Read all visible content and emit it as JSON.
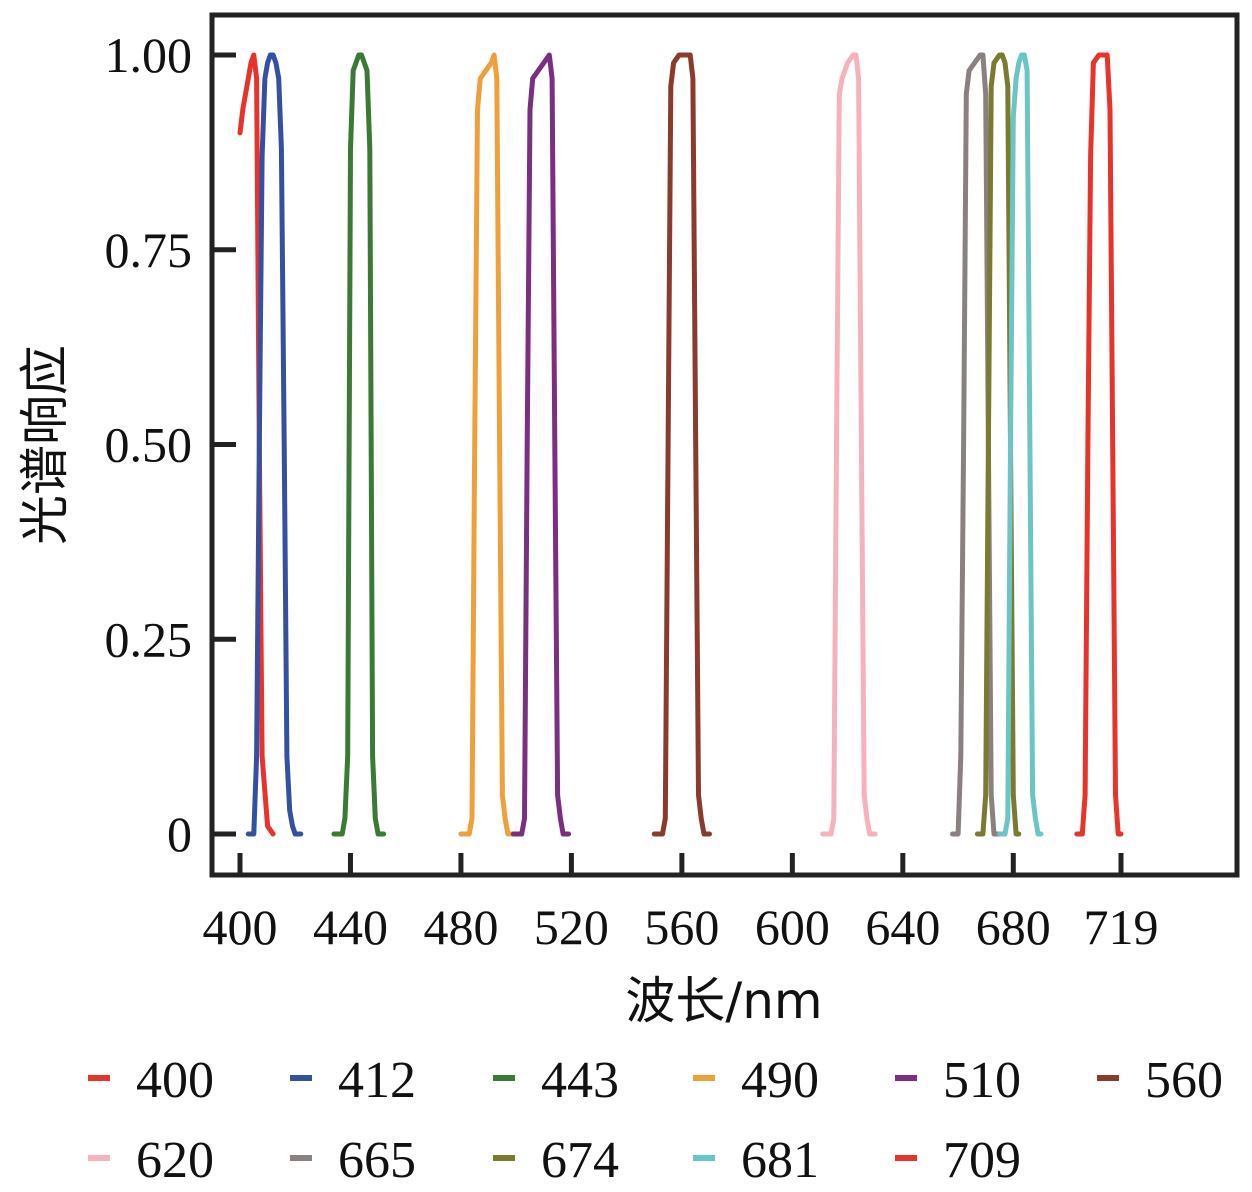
{
  "chart_data": {
    "type": "line",
    "title": "",
    "xlabel": "波长/nm",
    "ylabel": "光谱响应",
    "xlim": [
      395,
      755
    ],
    "ylim": [
      -0.05,
      1.05
    ],
    "x_ticks": [
      400,
      440,
      480,
      520,
      560,
      600,
      640,
      680,
      719
    ],
    "x_tick_labels": [
      "400",
      "440",
      "480",
      "520",
      "560",
      "600",
      "640",
      "680",
      "719"
    ],
    "y_ticks": [
      0,
      0.25,
      0.5,
      0.75,
      1.0
    ],
    "y_tick_labels": [
      "0",
      "0.25",
      "0.50",
      "0.75",
      "1.00"
    ],
    "legend_position": "bottom",
    "series": [
      {
        "name": "400",
        "color": "#e8332a",
        "x": [
          400,
          401,
          403,
          404,
          405,
          406,
          407,
          408,
          410,
          412
        ],
        "y": [
          0.9,
          0.93,
          0.97,
          0.99,
          1.0,
          0.97,
          0.5,
          0.1,
          0.01,
          0
        ]
      },
      {
        "name": "412",
        "color": "#3550a0",
        "x": [
          403,
          405,
          406,
          407,
          408,
          409,
          410,
          411,
          412,
          413,
          414,
          415,
          416,
          417,
          418,
          419,
          420,
          422
        ],
        "y": [
          0,
          0,
          0.1,
          0.5,
          0.87,
          0.97,
          0.99,
          1.0,
          1.0,
          0.99,
          0.97,
          0.88,
          0.5,
          0.1,
          0.03,
          0.01,
          0,
          0
        ]
      },
      {
        "name": "443",
        "color": "#3a7a35",
        "x": [
          434,
          437,
          438,
          439,
          440,
          441,
          442,
          443,
          444,
          445,
          446,
          447,
          448,
          449,
          450,
          452
        ],
        "y": [
          0,
          0,
          0.02,
          0.1,
          0.88,
          0.98,
          0.99,
          1.0,
          1.0,
          0.99,
          0.98,
          0.88,
          0.1,
          0.02,
          0,
          0
        ]
      },
      {
        "name": "490",
        "color": "#f0a03a",
        "x": [
          480,
          483,
          484,
          485,
          486,
          487,
          489,
          491,
          492,
          493,
          494,
          495,
          496,
          497,
          499
        ],
        "y": [
          0,
          0,
          0.02,
          0.5,
          0.93,
          0.97,
          0.98,
          0.99,
          1.0,
          0.97,
          0.5,
          0.05,
          0.02,
          0,
          0
        ]
      },
      {
        "name": "510",
        "color": "#7a2f80",
        "x": [
          499,
          502,
          503,
          504,
          505,
          506,
          508,
          510,
          512,
          513,
          514,
          515,
          516,
          517,
          519
        ],
        "y": [
          0,
          0,
          0.02,
          0.5,
          0.93,
          0.97,
          0.98,
          0.99,
          1.0,
          0.97,
          0.5,
          0.05,
          0.02,
          0,
          0
        ]
      },
      {
        "name": "560",
        "color": "#8b3a2e",
        "x": [
          550,
          553,
          554,
          555,
          556,
          557,
          559,
          561,
          563,
          564,
          565,
          566,
          567,
          568,
          570
        ],
        "y": [
          0,
          0,
          0.02,
          0.5,
          0.96,
          0.99,
          1.0,
          1.0,
          1.0,
          0.97,
          0.5,
          0.05,
          0.02,
          0,
          0
        ]
      },
      {
        "name": "620",
        "color": "#f5b2bc",
        "x": [
          611,
          614,
          615,
          616,
          617,
          618,
          620,
          622,
          623,
          624,
          625,
          626,
          627,
          628,
          630
        ],
        "y": [
          0,
          0,
          0.02,
          0.5,
          0.95,
          0.97,
          0.99,
          1.0,
          1.0,
          0.97,
          0.5,
          0.05,
          0.02,
          0,
          0
        ]
      },
      {
        "name": "665",
        "color": "#8a8080",
        "x": [
          658,
          660,
          661,
          662,
          663,
          664,
          666,
          668,
          669,
          670,
          671,
          672,
          673,
          675
        ],
        "y": [
          0,
          0,
          0.1,
          0.5,
          0.95,
          0.98,
          0.99,
          1.0,
          1.0,
          0.95,
          0.5,
          0.05,
          0,
          0
        ]
      },
      {
        "name": "674",
        "color": "#7a7a30",
        "x": [
          667,
          669,
          670,
          671,
          672,
          673,
          675,
          676,
          677,
          678,
          679,
          680,
          681,
          682
        ],
        "y": [
          0,
          0,
          0.05,
          0.5,
          0.96,
          0.99,
          1.0,
          1.0,
          0.99,
          0.96,
          0.5,
          0.05,
          0,
          0
        ]
      },
      {
        "name": "681",
        "color": "#6cc5c5",
        "x": [
          675,
          677,
          678,
          679,
          680,
          681,
          682,
          683,
          684,
          685,
          686,
          687,
          688,
          689,
          690
        ],
        "y": [
          0,
          0,
          0.02,
          0.5,
          0.92,
          0.97,
          0.99,
          1.0,
          1.0,
          0.98,
          0.5,
          0.05,
          0.02,
          0,
          0
        ]
      },
      {
        "name": "709",
        "color": "#e8332a",
        "x": [
          703,
          705,
          706,
          707,
          708,
          709,
          711,
          713,
          714,
          715,
          716,
          717,
          718,
          719
        ],
        "y": [
          0,
          0,
          0.05,
          0.5,
          0.87,
          0.99,
          1.0,
          1.0,
          1.0,
          0.93,
          0.5,
          0.05,
          0,
          0
        ]
      }
    ]
  }
}
